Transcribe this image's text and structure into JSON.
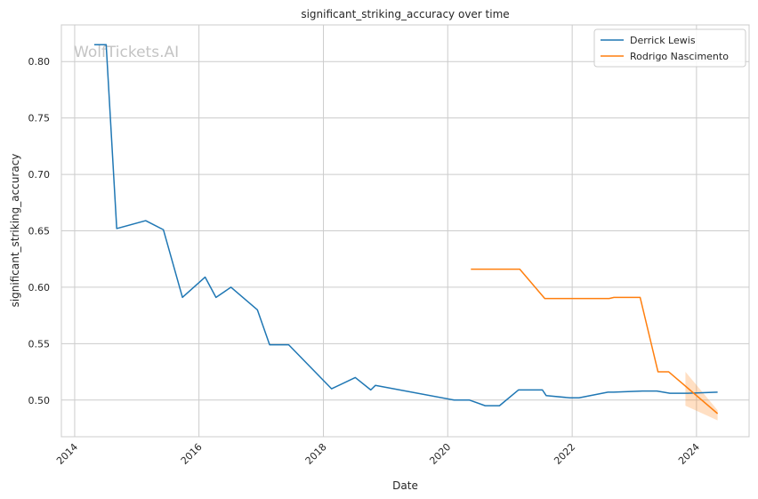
{
  "watermark": "WolfTickets.AI",
  "chart_data": {
    "type": "line",
    "title": "significant_striking_accuracy over time",
    "xlabel": "Date",
    "ylabel": "significant_striking_accuracy",
    "xlim": [
      "2013-10-15",
      "2024-11-05"
    ],
    "ylim": [
      0.4675,
      0.8325
    ],
    "x_ticks": [
      "2014",
      "2016",
      "2018",
      "2020",
      "2022",
      "2024"
    ],
    "y_ticks": [
      "0.50",
      "0.55",
      "0.60",
      "0.65",
      "0.70",
      "0.75",
      "0.80"
    ],
    "grid": true,
    "legend_position": "top-right",
    "series": [
      {
        "name": "Derrick Lewis",
        "color": "#1f77b4",
        "points": [
          [
            "2014-04-26",
            0.815
          ],
          [
            "2014-07-05",
            0.815
          ],
          [
            "2014-09-05",
            0.652
          ],
          [
            "2015-02-22",
            0.659
          ],
          [
            "2015-06-06",
            0.651
          ],
          [
            "2015-09-26",
            0.591
          ],
          [
            "2016-02-06",
            0.609
          ],
          [
            "2016-04-10",
            0.591
          ],
          [
            "2016-07-07",
            0.6
          ],
          [
            "2016-12-09",
            0.58
          ],
          [
            "2017-02-19",
            0.549
          ],
          [
            "2017-06-11",
            0.549
          ],
          [
            "2018-02-18",
            0.51
          ],
          [
            "2018-07-07",
            0.52
          ],
          [
            "2018-10-06",
            0.509
          ],
          [
            "2018-11-02",
            0.513
          ],
          [
            "2020-02-08",
            0.5
          ],
          [
            "2020-05-08",
            0.5
          ],
          [
            "2020-08-08",
            0.495
          ],
          [
            "2020-10-31",
            0.495
          ],
          [
            "2021-02-20",
            0.509
          ],
          [
            "2021-07-10",
            0.509
          ],
          [
            "2021-08-01",
            0.504
          ],
          [
            "2021-12-18",
            0.502
          ],
          [
            "2022-02-10",
            0.502
          ],
          [
            "2022-07-30",
            0.507
          ],
          [
            "2022-09-01",
            0.507
          ],
          [
            "2023-02-18",
            0.508
          ],
          [
            "2023-05-13",
            0.508
          ],
          [
            "2023-07-29",
            0.506
          ],
          [
            "2023-11-11",
            0.506
          ],
          [
            "2024-05-04",
            0.507
          ]
        ]
      },
      {
        "name": "Rodrigo Nascimento",
        "color": "#ff7f0e",
        "points": [
          [
            "2020-05-16",
            0.616
          ],
          [
            "2021-02-27",
            0.616
          ],
          [
            "2021-07-24",
            0.59
          ],
          [
            "2022-08-06",
            0.59
          ],
          [
            "2022-09-03",
            0.591
          ],
          [
            "2023-02-04",
            0.591
          ],
          [
            "2023-05-20",
            0.525
          ],
          [
            "2023-07-22",
            0.525
          ],
          [
            "2024-05-04",
            0.488
          ]
        ],
        "band": {
          "x": [
            "2023-10-28",
            "2024-05-04"
          ],
          "lower": [
            0.495,
            0.482
          ],
          "upper": [
            0.525,
            0.491
          ]
        }
      }
    ]
  }
}
